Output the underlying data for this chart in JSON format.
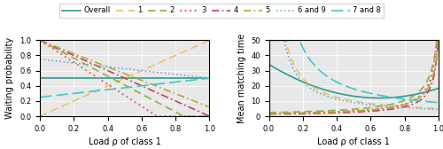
{
  "title": "",
  "left_ylabel": "Waiting probability",
  "right_ylabel": "Mean matching time",
  "xlabel": "Load ρ of class 1",
  "xlim": [
    0,
    1
  ],
  "left_ylim": [
    0,
    1
  ],
  "right_ylim": [
    0,
    50
  ],
  "legend_entries": [
    "Overall",
    "1",
    "2",
    "3",
    "4",
    "5",
    "6 and 9",
    "7 and 8"
  ],
  "colors": {
    "Overall": "#2a9d8f",
    "1": "#e9c46a",
    "2": "#8ab04a",
    "3": "#e07070",
    "4": "#c0435a",
    "5": "#b8a830",
    "6and9": "#6ab0d0",
    "7and8": "#40c8c8"
  },
  "background_color": "#e8e8e8"
}
